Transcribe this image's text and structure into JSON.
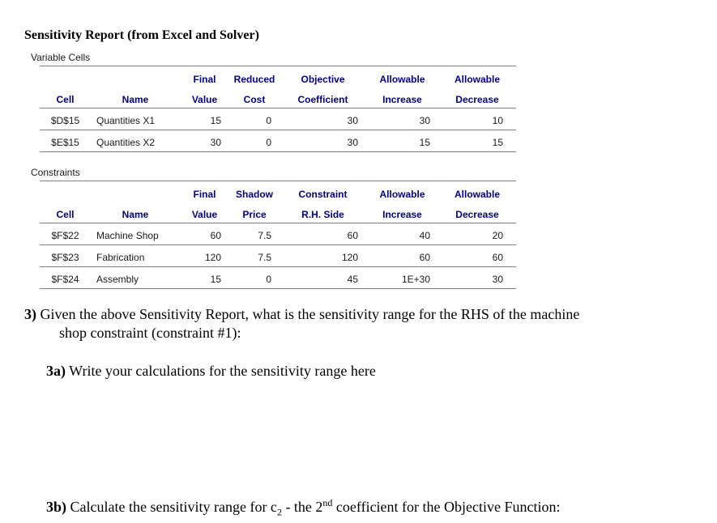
{
  "document": {
    "title": "Sensitivity Report (from Excel and Solver)"
  },
  "colors": {
    "table_header_text": "#00008B",
    "table_rule": "#808080",
    "body_text": "#000000"
  },
  "variable_cells": {
    "section_label": "Variable Cells",
    "header_row1": [
      "",
      "",
      "Final",
      "Reduced",
      "Objective",
      "Allowable",
      "Allowable"
    ],
    "header_row2": [
      "Cell",
      "Name",
      "Value",
      "Cost",
      "Coefficient",
      "Increase",
      "Decrease"
    ],
    "rows": [
      [
        "$D$15",
        "Quantities X1",
        "15",
        "0",
        "30",
        "30",
        "10"
      ],
      [
        "$E$15",
        "Quantities X2",
        "30",
        "0",
        "30",
        "15",
        "15"
      ]
    ]
  },
  "constraints": {
    "section_label": "Constraints",
    "header_row1": [
      "",
      "",
      "Final",
      "Shadow",
      "Constraint",
      "Allowable",
      "Allowable"
    ],
    "header_row2": [
      "Cell",
      "Name",
      "Value",
      "Price",
      "R.H. Side",
      "Increase",
      "Decrease"
    ],
    "rows": [
      [
        "$F$22",
        "Machine Shop",
        "60",
        "7.5",
        "60",
        "40",
        "20"
      ],
      [
        "$F$23",
        "Fabrication",
        "120",
        "7.5",
        "120",
        "60",
        "60"
      ],
      [
        "$F$24",
        "Assembly",
        "15",
        "0",
        "45",
        "1E+30",
        "30"
      ]
    ]
  },
  "questions": {
    "q3_number": "3)",
    "q3_line1": " Given the above Sensitivity Report, what is the sensitivity range for the RHS of the machine",
    "q3_line2": "shop constraint (constraint #1):",
    "q3a_number": "3a)",
    "q3a_text": " Write your calculations for the sensitivity range here",
    "q3b_number": "3b)",
    "q3b_part1": " Calculate the sensitivity range for c",
    "q3b_sub": "2",
    "q3b_part2": " - the 2",
    "q3b_sup": "nd",
    "q3b_part3": " coefficient for the Objective Function:"
  }
}
